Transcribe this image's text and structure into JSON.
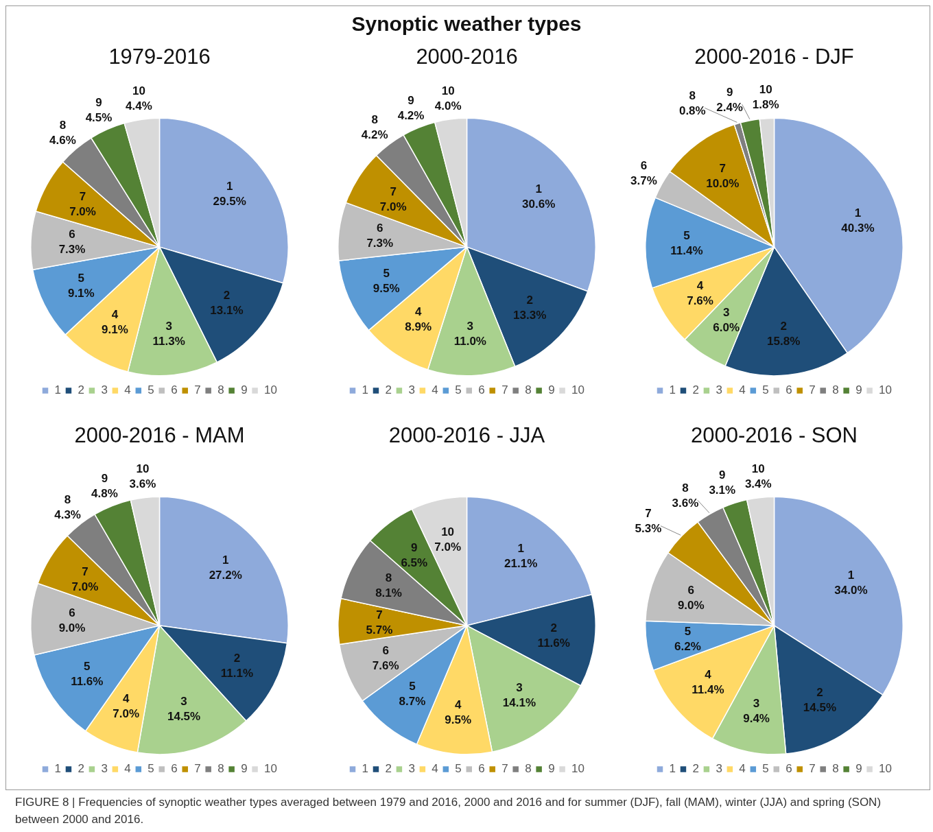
{
  "chart_data": [
    {
      "type": "pie",
      "title": "1979-2016",
      "annotations": [
        "Synoptic weather types"
      ],
      "categories": [
        "1",
        "2",
        "3",
        "4",
        "5",
        "6",
        "7",
        "8",
        "9",
        "10"
      ],
      "values": [
        29.5,
        13.1,
        11.3,
        9.1,
        9.1,
        7.3,
        7.0,
        4.6,
        4.5,
        4.4
      ],
      "value_labels": [
        "29.5%",
        "13.1%",
        "11.3%",
        "9.1%",
        "9.1%",
        "7.3%",
        "7.0%",
        "4.6%",
        "4.5%",
        "4.4%"
      ],
      "colors": [
        "#8eaadb",
        "#1f4e79",
        "#a9d18e",
        "#ffd966",
        "#5b9bd5",
        "#bfbfbf",
        "#bf9000",
        "#7f7f7f",
        "#548235",
        "#d9d9d9"
      ],
      "legend": "bottom"
    },
    {
      "type": "pie",
      "title": "2000-2016",
      "categories": [
        "1",
        "2",
        "3",
        "4",
        "5",
        "6",
        "7",
        "8",
        "9",
        "10"
      ],
      "values": [
        30.6,
        13.3,
        11.0,
        8.9,
        9.5,
        7.3,
        7.0,
        4.2,
        4.2,
        4.0
      ],
      "value_labels": [
        "30.6%",
        "13.3%",
        "11.0%",
        "8.9%",
        "9.5%",
        "7.3%",
        "7.0%",
        "4.2%",
        "4.2%",
        "4.0%"
      ],
      "colors": [
        "#8eaadb",
        "#1f4e79",
        "#a9d18e",
        "#ffd966",
        "#5b9bd5",
        "#bfbfbf",
        "#bf9000",
        "#7f7f7f",
        "#548235",
        "#d9d9d9"
      ],
      "legend": "bottom"
    },
    {
      "type": "pie",
      "title": "2000-2016 - DJF",
      "categories": [
        "1",
        "2",
        "3",
        "4",
        "5",
        "6",
        "7",
        "8",
        "9",
        "10"
      ],
      "values": [
        40.3,
        15.8,
        6.0,
        7.6,
        11.4,
        3.7,
        10.0,
        0.8,
        2.4,
        1.8
      ],
      "value_labels": [
        "40.3%",
        "15.8%",
        "6.0%",
        "7.6%",
        "11.4%",
        "3.7%",
        "10.0%",
        "0.8%",
        "2.4%",
        "1.8%"
      ],
      "colors": [
        "#8eaadb",
        "#1f4e79",
        "#a9d18e",
        "#ffd966",
        "#5b9bd5",
        "#bfbfbf",
        "#bf9000",
        "#7f7f7f",
        "#548235",
        "#d9d9d9"
      ],
      "legend": "bottom"
    },
    {
      "type": "pie",
      "title": "2000-2016 - MAM",
      "categories": [
        "1",
        "2",
        "3",
        "4",
        "5",
        "6",
        "7",
        "8",
        "9",
        "10"
      ],
      "values": [
        27.2,
        11.1,
        14.5,
        7.0,
        11.6,
        9.0,
        7.0,
        4.3,
        4.8,
        3.6
      ],
      "value_labels": [
        "27.2%",
        "11.1%",
        "14.5%",
        "7.0%",
        "11.6%",
        "9.0%",
        "7.0%",
        "4.3%",
        "4.8%",
        "3.6%"
      ],
      "colors": [
        "#8eaadb",
        "#1f4e79",
        "#a9d18e",
        "#ffd966",
        "#5b9bd5",
        "#bfbfbf",
        "#bf9000",
        "#7f7f7f",
        "#548235",
        "#d9d9d9"
      ],
      "legend": "bottom"
    },
    {
      "type": "pie",
      "title": "2000-2016 - JJA",
      "categories": [
        "1",
        "2",
        "3",
        "4",
        "5",
        "6",
        "7",
        "8",
        "9",
        "10"
      ],
      "values": [
        21.1,
        11.6,
        14.1,
        9.5,
        8.7,
        7.6,
        5.7,
        8.1,
        6.5,
        7.0
      ],
      "value_labels": [
        "21.1%",
        "11.6%",
        "14.1%",
        "9.5%",
        "8.7%",
        "7.6%",
        "5.7%",
        "8.1%",
        "6.5%",
        "7.0%"
      ],
      "colors": [
        "#8eaadb",
        "#1f4e79",
        "#a9d18e",
        "#ffd966",
        "#5b9bd5",
        "#bfbfbf",
        "#bf9000",
        "#7f7f7f",
        "#548235",
        "#d9d9d9"
      ],
      "legend": "bottom"
    },
    {
      "type": "pie",
      "title": "2000-2016 - SON",
      "annotations": [
        "FIGURE 8 | Frequencies of synoptic weather types averaged between 1979 and 2016, 2000 and 2016 and for summer (DJF), fall (MAM), winter (JJA) and spring (SON) between 2000 and 2016."
      ],
      "categories": [
        "1",
        "2",
        "3",
        "4",
        "5",
        "6",
        "7",
        "8",
        "9",
        "10"
      ],
      "values": [
        34.0,
        14.5,
        9.4,
        11.4,
        6.2,
        9.0,
        5.3,
        3.6,
        3.1,
        3.4
      ],
      "value_labels": [
        "34.0%",
        "14.5%",
        "9.4%",
        "11.4%",
        "6.2%",
        "9.0%",
        "5.3%",
        "3.6%",
        "3.1%",
        "3.4%"
      ],
      "colors": [
        "#8eaadb",
        "#1f4e79",
        "#a9d18e",
        "#ffd966",
        "#5b9bd5",
        "#bfbfbf",
        "#bf9000",
        "#7f7f7f",
        "#548235",
        "#d9d9d9"
      ],
      "legend": "bottom"
    }
  ]
}
